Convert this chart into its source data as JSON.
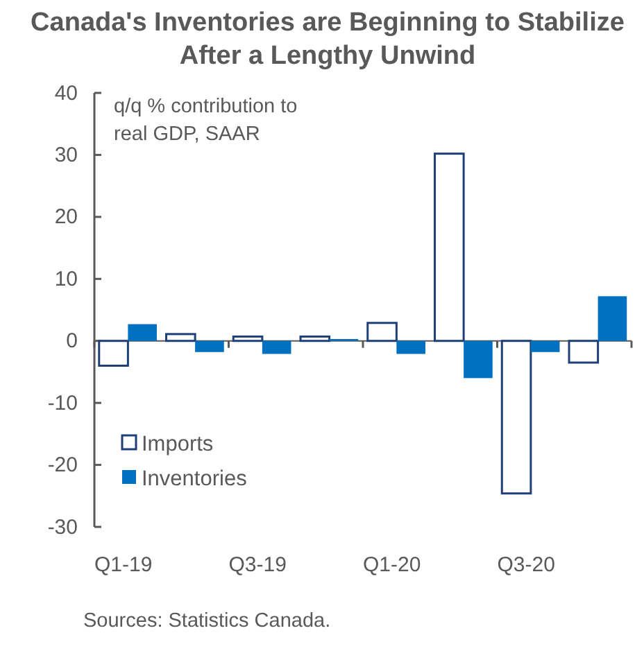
{
  "chart_data": {
    "type": "bar",
    "title": "Canada's Inventories are Beginning to Stabilize After a Lengthy Unwind",
    "ylabel": "q/q % contribution to real GDP, SAAR",
    "categories": [
      "Q1-19",
      null,
      "Q3-19",
      null,
      "Q1-20",
      null,
      "Q3-20",
      null
    ],
    "series": [
      {
        "name": "Imports",
        "color": "#ffffff",
        "values": [
          -4.0,
          1.1,
          0.7,
          0.7,
          2.9,
          30.2,
          -24.6,
          -3.5
        ]
      },
      {
        "name": "Inventories",
        "color": "#0070c0",
        "values": [
          2.7,
          -1.8,
          -2.1,
          0.3,
          -2.1,
          -6.0,
          -1.8,
          7.2
        ]
      }
    ],
    "ylim": [
      -30,
      40
    ],
    "yticks": [
      -30,
      -20,
      -10,
      0,
      10,
      20,
      30,
      40
    ],
    "legend": "bottom left",
    "annotations": [
      "Sources: Statistics Canada."
    ]
  }
}
